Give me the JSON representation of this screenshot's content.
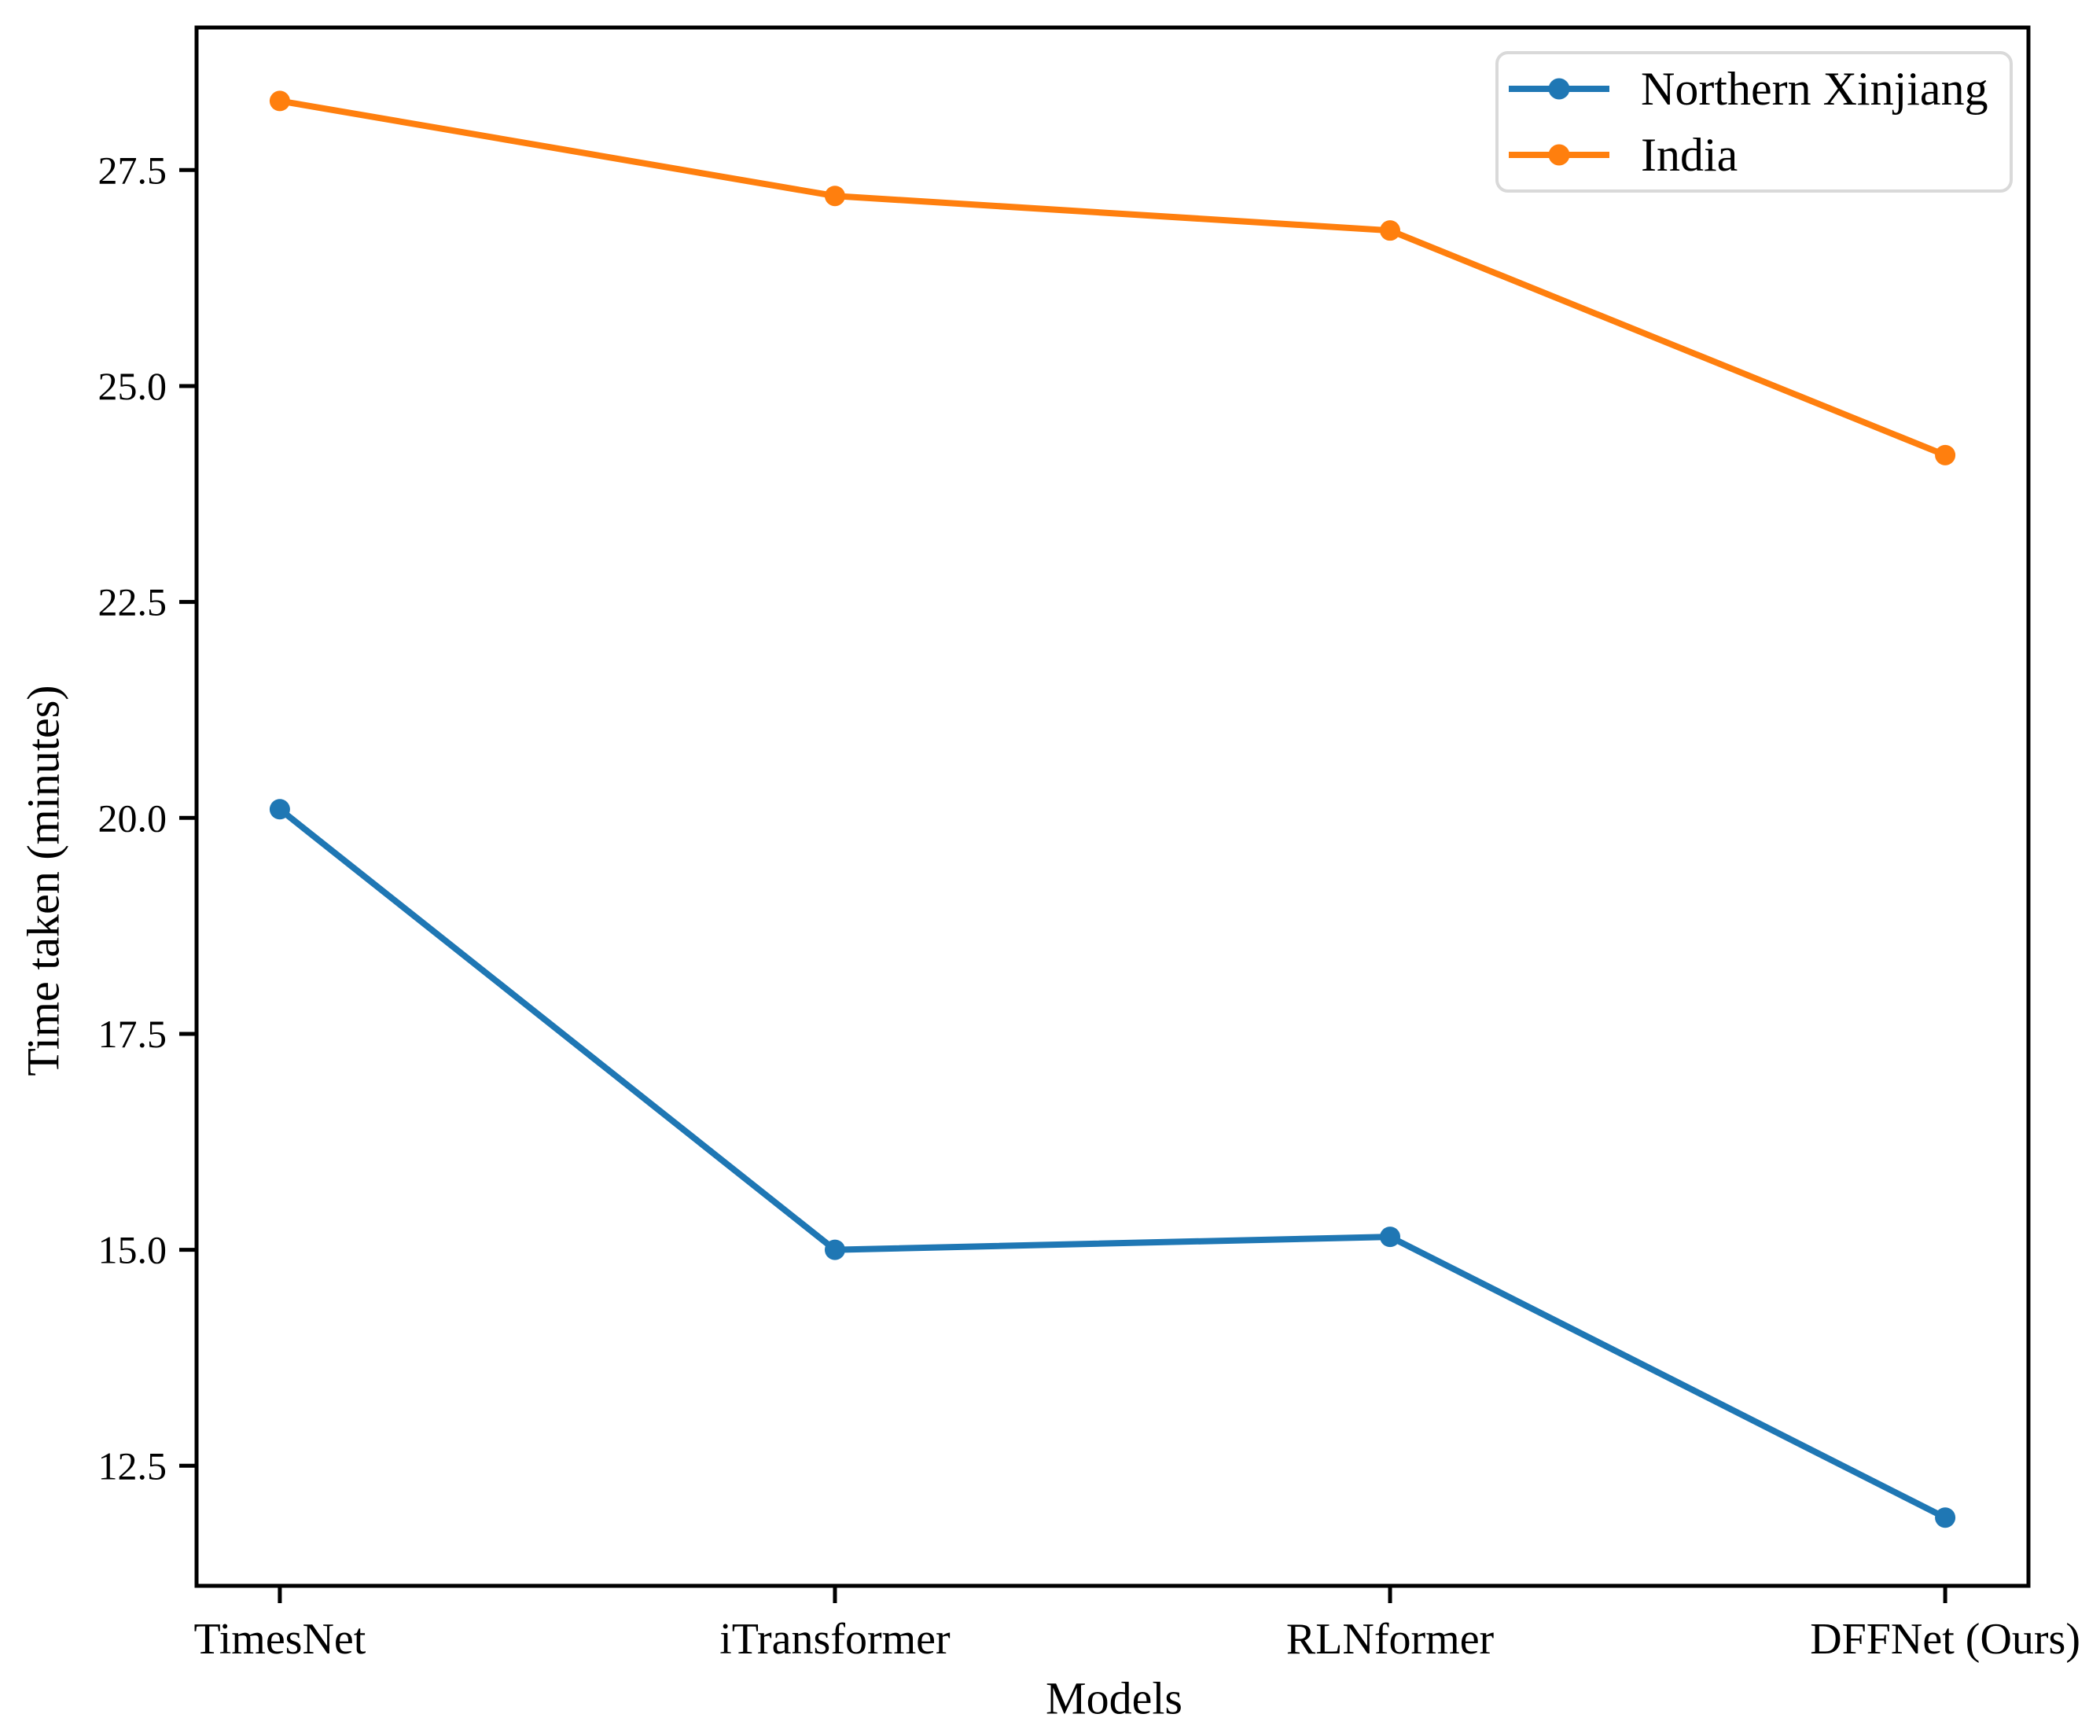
{
  "chart_data": {
    "type": "line",
    "title": "",
    "xlabel": "Models",
    "ylabel": "Time taken (minutes)",
    "categories": [
      "TimesNet",
      "iTransformer",
      "RLNformer",
      "DFFNet (Ours)"
    ],
    "series": [
      {
        "name": "Northern Xinjiang",
        "color": "#1f77b4",
        "values": [
          20.1,
          15.0,
          15.15,
          11.9
        ]
      },
      {
        "name": "India",
        "color": "#ff7f0e",
        "values": [
          28.3,
          27.2,
          26.8,
          24.2
        ]
      }
    ],
    "yticks": [
      12.5,
      15.0,
      17.5,
      20.0,
      22.5,
      25.0,
      27.5
    ],
    "ylim": [
      11.11,
      29.15
    ],
    "xlim": [
      -0.15,
      3.15
    ],
    "grid": false,
    "marker": "o",
    "legend_position": "upper right"
  }
}
